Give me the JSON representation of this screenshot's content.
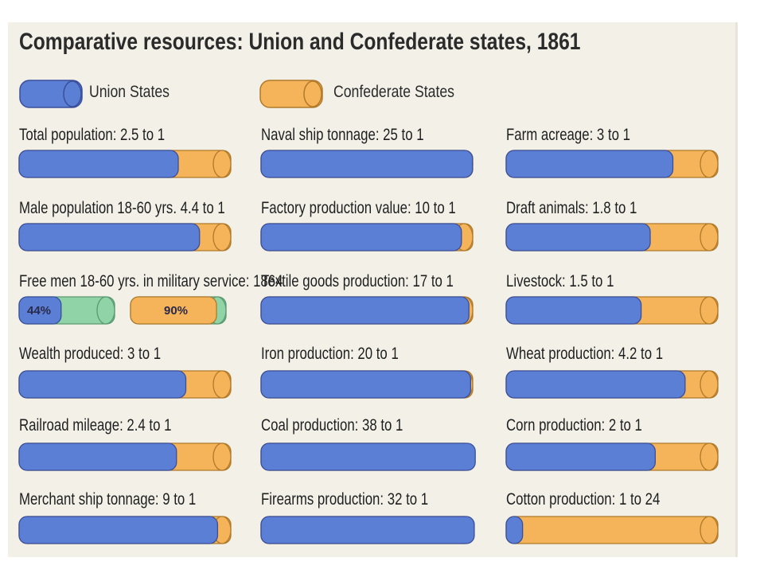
{
  "colors": {
    "union": "#5a7fd4",
    "confederate": "#f5b35a",
    "military": "#8fd3a6",
    "outline": "#3a4f9a"
  },
  "legend": {
    "union_label": "Union States",
    "confederate_label": "Confederate States"
  },
  "chart_data": {
    "type": "bar",
    "title": "Comparative resources: Union and Confederate states, 1861",
    "legend_position": "top",
    "series": [
      {
        "name": "Union States"
      },
      {
        "name": "Confederate States"
      }
    ],
    "items": [
      {
        "label": "Total population: 2.5 to 1",
        "union": 2.5,
        "confederate": 1
      },
      {
        "label": "Male population 18-60 yrs. 4.4 to 1",
        "union": 4.4,
        "confederate": 1
      },
      {
        "label": "Free men 18-60 yrs. in military service: 1864",
        "type": "percent",
        "union_pct": 44,
        "confederate_pct": 90,
        "union_text": "44%",
        "confederate_text": "90%"
      },
      {
        "label": "Wealth produced: 3 to 1",
        "union": 3,
        "confederate": 1
      },
      {
        "label": "Railroad mileage: 2.4 to 1",
        "union": 2.4,
        "confederate": 1
      },
      {
        "label": "Merchant ship tonnage: 9 to 1",
        "union": 9,
        "confederate": 1
      },
      {
        "label": "Naval ship tonnage: 25 to 1",
        "union": 25,
        "confederate": 1
      },
      {
        "label": "Factory production value: 10 to 1",
        "union": 10,
        "confederate": 1
      },
      {
        "label": "Textile goods production: 17 to 1",
        "union": 17,
        "confederate": 1
      },
      {
        "label": "Iron production: 20 to 1",
        "union": 20,
        "confederate": 1
      },
      {
        "label": "Coal production: 38 to 1",
        "union": 38,
        "confederate": 1
      },
      {
        "label": "Firearms production: 32 to 1",
        "union": 32,
        "confederate": 1
      },
      {
        "label": "Farm acreage: 3 to 1",
        "union": 3,
        "confederate": 1
      },
      {
        "label": "Draft animals: 1.8 to 1",
        "union": 1.8,
        "confederate": 1
      },
      {
        "label": "Livestock: 1.5 to 1",
        "union": 1.5,
        "confederate": 1
      },
      {
        "label": "Wheat production: 4.2 to 1",
        "union": 4.2,
        "confederate": 1
      },
      {
        "label": "Corn production: 2 to 1",
        "union": 2,
        "confederate": 1
      },
      {
        "label": "Cotton production: 1 to 24",
        "union": 1,
        "confederate": 24
      }
    ]
  }
}
